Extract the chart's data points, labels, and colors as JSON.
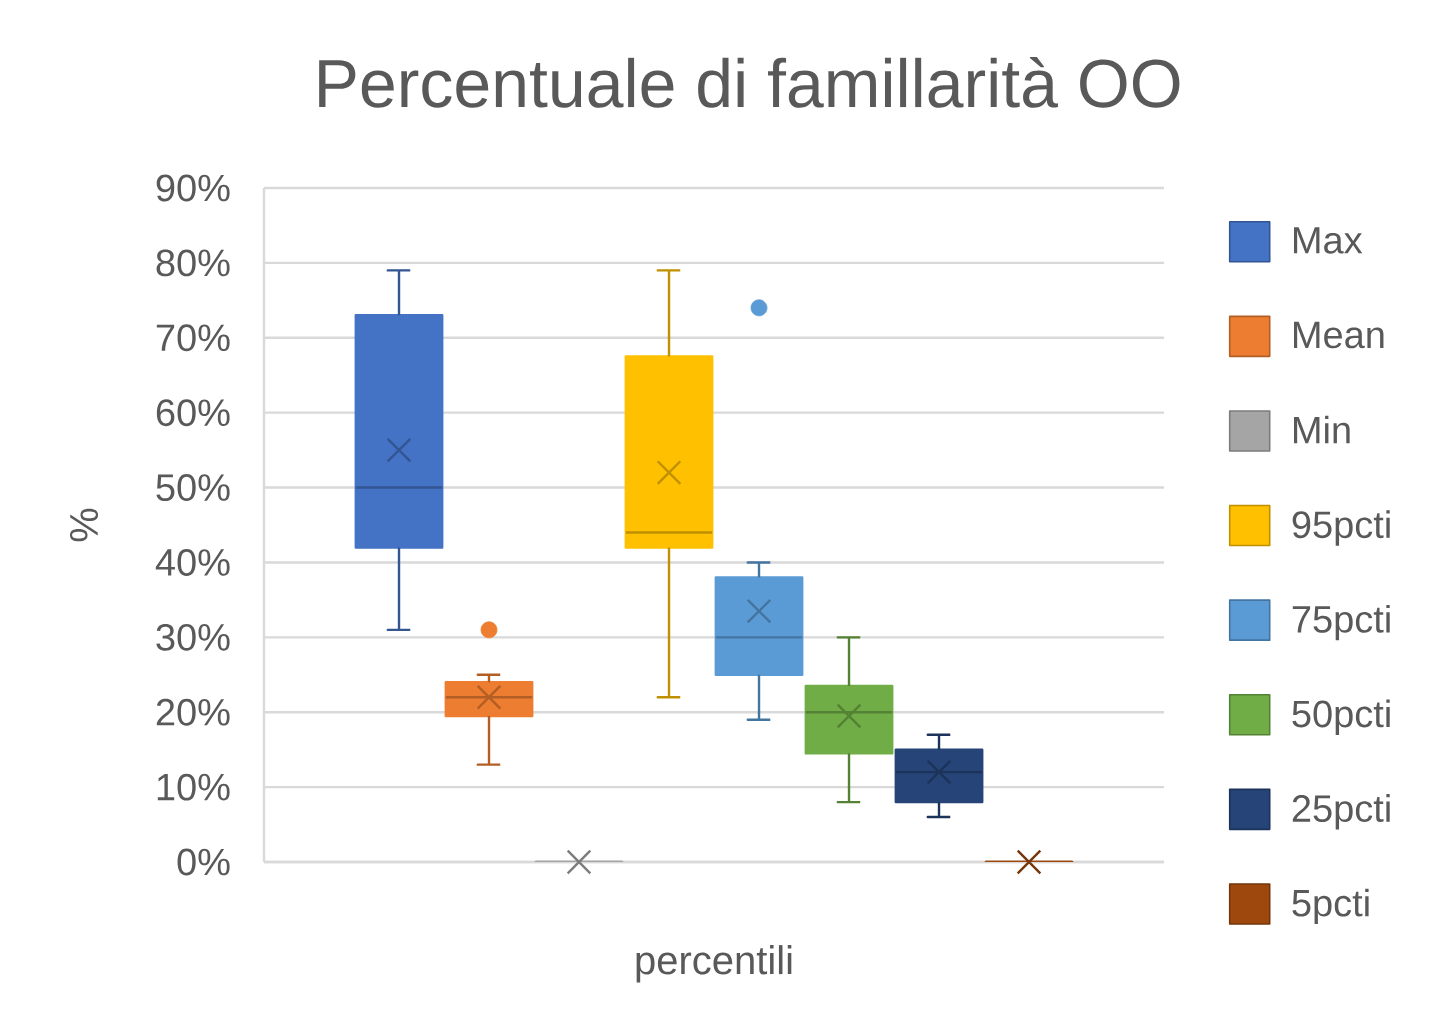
{
  "chart_data": {
    "type": "box",
    "title": "Percentuale di famillarità OO",
    "xlabel": "percentili",
    "ylabel": "%",
    "categories": [
      null
    ],
    "ylim": [
      0,
      90
    ],
    "yticks": [
      {
        "value": 0,
        "label": "0%"
      },
      {
        "value": 10,
        "label": "10%"
      },
      {
        "value": 20,
        "label": "20%"
      },
      {
        "value": 30,
        "label": "30%"
      },
      {
        "value": 40,
        "label": "40%"
      },
      {
        "value": 50,
        "label": "50%"
      },
      {
        "value": 60,
        "label": "60%"
      },
      {
        "value": 70,
        "label": "70%"
      },
      {
        "value": 80,
        "label": "80%"
      },
      {
        "value": 90,
        "label": "90%"
      }
    ],
    "grid": "y",
    "legend": "right",
    "tick_labels": "y",
    "series": [
      {
        "name": "Max",
        "color": "#4472c4",
        "boxes": [
          {
            "low": 31,
            "q1": 42,
            "median": 50,
            "q3": 73,
            "high": 79,
            "mean": 55
          }
        ]
      },
      {
        "name": "Mean",
        "color": "#ed7d31",
        "boxes": [
          {
            "low": 13,
            "q1": 19.5,
            "median": 22,
            "q3": 24,
            "high": 25,
            "mean": 22,
            "outliers": [
              31
            ]
          }
        ]
      },
      {
        "name": "Min",
        "color": "#a5a5a5",
        "boxes": [
          {
            "low": 0,
            "q1": 0,
            "median": 0,
            "q3": 0,
            "high": 0,
            "mean": 0
          }
        ]
      },
      {
        "name": "95pcti",
        "color": "#ffc000",
        "boxes": [
          {
            "low": 22,
            "q1": 42,
            "median": 44,
            "q3": 67.5,
            "high": 79,
            "mean": 52
          }
        ]
      },
      {
        "name": "75pcti",
        "color": "#5b9bd5",
        "boxes": [
          {
            "low": 19,
            "q1": 25,
            "median": 30,
            "q3": 38,
            "high": 40,
            "mean": 33.5,
            "outliers": [
              74
            ]
          }
        ]
      },
      {
        "name": "50pcti",
        "color": "#70ad47",
        "boxes": [
          {
            "low": 8,
            "q1": 14.5,
            "median": 20,
            "q3": 23.5,
            "high": 30,
            "mean": 19.5
          }
        ]
      },
      {
        "name": "25pcti",
        "color": "#264478",
        "boxes": [
          {
            "low": 6,
            "q1": 8,
            "median": 12,
            "q3": 15,
            "high": 17,
            "mean": 12
          }
        ]
      },
      {
        "name": "5pcti",
        "color": "#9e480e",
        "boxes": [
          {
            "low": 0,
            "q1": 0,
            "median": 0,
            "q3": 0,
            "high": 0,
            "mean": 0
          }
        ]
      }
    ]
  }
}
